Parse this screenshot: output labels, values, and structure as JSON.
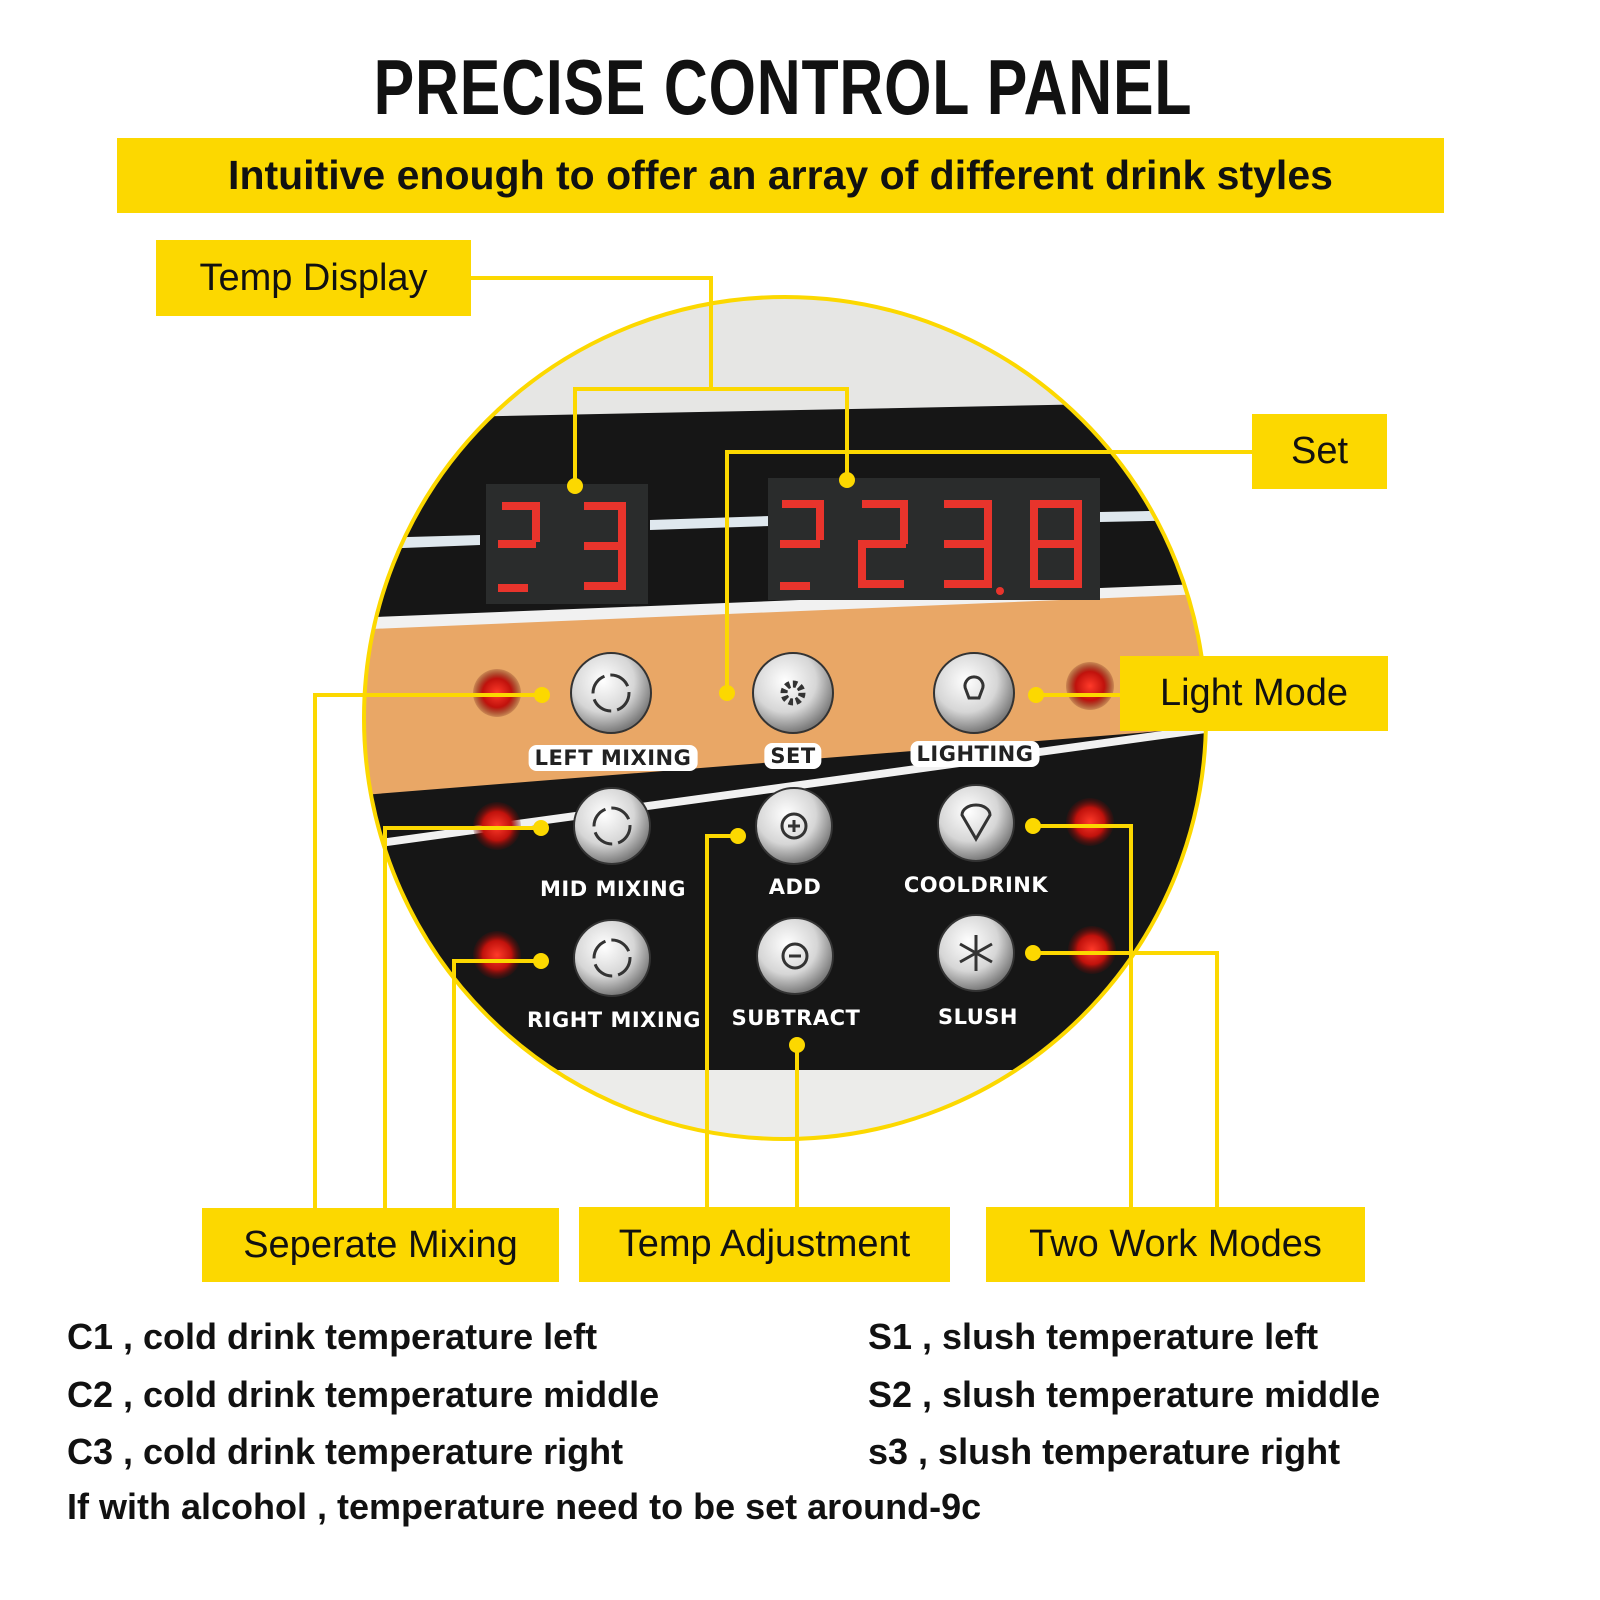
{
  "title": "PRECISE CONTROL PANEL",
  "subtitle": "Intuitive enough to offer an array of different drink styles",
  "callouts": {
    "temp_display": "Temp Display",
    "set": "Set",
    "light_mode": "Light Mode",
    "separate_mixing": "Seperate Mixing",
    "temp_adjustment": "Temp Adjustment",
    "two_work_modes": "Two Work Modes"
  },
  "panel_buttons": [
    {
      "label": "LEFT MIXING",
      "icon": "rotate-arrows-icon"
    },
    {
      "label": "SET",
      "icon": "gear-icon"
    },
    {
      "label": "LIGHTING",
      "icon": "lightbulb-icon"
    },
    {
      "label": "MID MIXING",
      "icon": "rotate-arrows-icon"
    },
    {
      "label": "ADD",
      "icon": "plus-icon"
    },
    {
      "label": "COOLDRINK",
      "icon": "ice-cream-icon"
    },
    {
      "label": "RIGHT MIXING",
      "icon": "rotate-arrows-icon"
    },
    {
      "label": "SUBTRACT",
      "icon": "minus-icon"
    },
    {
      "label": "SLUSH",
      "icon": "snowflake-icon"
    }
  ],
  "notes": {
    "left": [
      "C1 , cold drink temperature left",
      "C2 , cold drink temperature middle",
      "C3 , cold drink temperature right"
    ],
    "right": [
      "S1 , slush temperature left",
      "S2 , slush temperature middle",
      "s3 , slush temperature right"
    ],
    "footer": "If with alcohol , temperature need to be set around-9c"
  },
  "colors": {
    "accent": "#fcd800",
    "panel": "#161616",
    "band": "#e9a766",
    "led": "#e01a1a"
  }
}
